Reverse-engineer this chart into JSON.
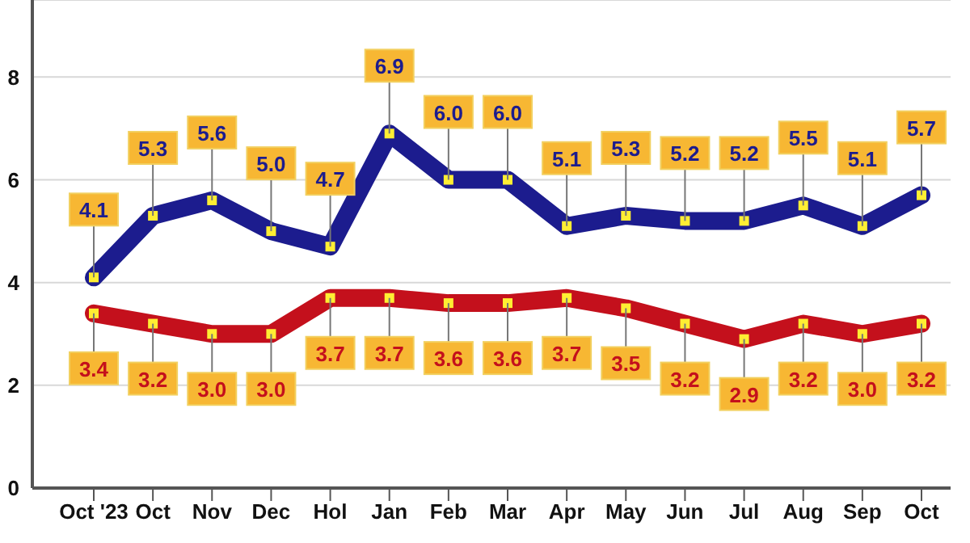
{
  "chart_data": {
    "type": "line",
    "categories": [
      "Oct '23",
      "Oct",
      "Nov",
      "Dec",
      "Hol",
      "Jan",
      "Feb",
      "Mar",
      "Apr",
      "May",
      "Jun",
      "Jul",
      "Aug",
      "Sep",
      "Oct"
    ],
    "series": [
      {
        "color": "#1c1c8e",
        "values": [
          4.1,
          5.3,
          5.6,
          5.0,
          4.7,
          6.9,
          6.0,
          6.0,
          5.1,
          5.3,
          5.2,
          5.2,
          5.5,
          5.1,
          5.7
        ],
        "value_labels": [
          "4.1",
          "5.3",
          "5.6",
          "5.0",
          "4.7",
          "6.9",
          "6.0",
          "6.0",
          "5.1",
          "5.3",
          "5.2",
          "5.2",
          "5.5",
          "5.1",
          "5.7"
        ]
      },
      {
        "color": "#c4101c",
        "values": [
          3.4,
          3.2,
          3.0,
          3.0,
          3.7,
          3.7,
          3.6,
          3.6,
          3.7,
          3.5,
          3.2,
          2.9,
          3.2,
          3.0,
          3.2
        ],
        "value_labels": [
          "3.4",
          "3.2",
          "3.0",
          "3.0",
          "3.7",
          "3.7",
          "3.6",
          "3.6",
          "3.7",
          "3.5",
          "3.2",
          "2.9",
          "3.2",
          "3.0",
          "3.2"
        ]
      }
    ],
    "ylim": [
      0,
      9.5
    ],
    "yticks": [
      0,
      2,
      4,
      6,
      8
    ],
    "grid": "y",
    "legend": false,
    "marker": "square",
    "line_style": "solid"
  }
}
